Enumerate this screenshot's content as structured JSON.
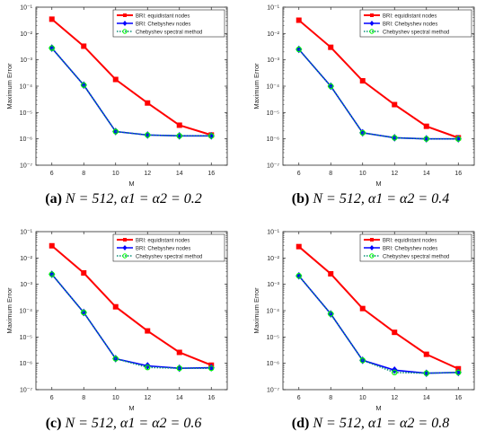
{
  "chart_data": [
    {
      "type": "line",
      "caption_label": "(a)",
      "caption_text": "N = 512, α1 = α2 = 0.2",
      "xlabel": "M",
      "ylabel": "Maximum Error",
      "x": [
        6,
        8,
        10,
        12,
        14,
        16
      ],
      "xlim": [
        5,
        17
      ],
      "ylim_log10": [
        -7,
        -1
      ],
      "yscale": "log",
      "legend_position": "top-right",
      "series": [
        {
          "name": "BRI: equidistant nodes",
          "color": "#ff0000",
          "marker": "square",
          "values": [
            0.035,
            0.0033,
            0.00018,
            2.3e-05,
            3.3e-06,
            1.4e-06
          ]
        },
        {
          "name": "BRI: Chebyshev nodes",
          "color": "#0000ff",
          "marker": "diamond",
          "values": [
            0.0028,
            0.00011,
            1.9e-06,
            1.4e-06,
            1.3e-06,
            1.3e-06
          ]
        },
        {
          "name": "Chebyshev spectral method",
          "color": "#00ff00",
          "marker": "circle",
          "dotted": true,
          "values": [
            0.0028,
            0.00011,
            1.9e-06,
            1.4e-06,
            1.3e-06,
            1.3e-06
          ]
        }
      ]
    },
    {
      "type": "line",
      "caption_label": "(b)",
      "caption_text": "N = 512, α1 = α2 = 0.4",
      "xlabel": "M",
      "ylabel": "Maximum Error",
      "x": [
        6,
        8,
        10,
        12,
        14,
        16
      ],
      "xlim": [
        5,
        17
      ],
      "ylim_log10": [
        -7,
        -1
      ],
      "yscale": "log",
      "legend_position": "top-right",
      "series": [
        {
          "name": "BRI: equidistant nodes",
          "color": "#ff0000",
          "marker": "square",
          "values": [
            0.032,
            0.003,
            0.00016,
            2e-05,
            3e-06,
            1.1e-06
          ]
        },
        {
          "name": "BRI: Chebyshev nodes",
          "color": "#0000ff",
          "marker": "diamond",
          "values": [
            0.0025,
            0.0001,
            1.7e-06,
            1.1e-06,
            1e-06,
            1e-06
          ]
        },
        {
          "name": "Chebyshev spectral method",
          "color": "#00ff00",
          "marker": "circle",
          "dotted": true,
          "values": [
            0.0025,
            0.0001,
            1.7e-06,
            1.1e-06,
            1e-06,
            1e-06
          ]
        }
      ]
    },
    {
      "type": "line",
      "caption_label": "(c)",
      "caption_text": "N = 512, α1 = α2 = 0.6",
      "xlabel": "M",
      "ylabel": "Maximum Error",
      "x": [
        6,
        8,
        10,
        12,
        14,
        16
      ],
      "xlim": [
        5,
        17
      ],
      "ylim_log10": [
        -7,
        -1
      ],
      "yscale": "log",
      "legend_position": "top-right",
      "series": [
        {
          "name": "BRI: equidistant nodes",
          "color": "#ff0000",
          "marker": "square",
          "values": [
            0.029,
            0.0027,
            0.00014,
            1.7e-05,
            2.6e-06,
            8.5e-07
          ]
        },
        {
          "name": "BRI: Chebyshev nodes",
          "color": "#0000ff",
          "marker": "diamond",
          "values": [
            0.0024,
            8.5e-05,
            1.5e-06,
            8e-07,
            6.5e-07,
            6.8e-07
          ]
        },
        {
          "name": "Chebyshev spectral method",
          "color": "#00ff00",
          "marker": "circle",
          "dotted": true,
          "values": [
            0.0024,
            8.5e-05,
            1.5e-06,
            7e-07,
            6.5e-07,
            6.5e-07
          ]
        }
      ]
    },
    {
      "type": "line",
      "caption_label": "(d)",
      "caption_text": "N = 512, α1 = α2 = 0.8",
      "xlabel": "M",
      "ylabel": "Maximum Error",
      "x": [
        6,
        8,
        10,
        12,
        14,
        16
      ],
      "xlim": [
        5,
        17
      ],
      "ylim_log10": [
        -7,
        -1
      ],
      "yscale": "log",
      "legend_position": "top-right",
      "series": [
        {
          "name": "BRI: equidistant nodes",
          "color": "#ff0000",
          "marker": "square",
          "values": [
            0.027,
            0.0025,
            0.00012,
            1.5e-05,
            2.2e-06,
            6.2e-07
          ]
        },
        {
          "name": "BRI: Chebyshev nodes",
          "color": "#0000ff",
          "marker": "diamond",
          "values": [
            0.0021,
            7.5e-05,
            1.3e-06,
            5.5e-07,
            4.2e-07,
            4.5e-07
          ]
        },
        {
          "name": "Chebyshev spectral method",
          "color": "#00ff00",
          "marker": "circle",
          "dotted": true,
          "values": [
            0.0021,
            7.5e-05,
            1.3e-06,
            4.5e-07,
            4.2e-07,
            4.5e-07
          ]
        }
      ]
    }
  ]
}
